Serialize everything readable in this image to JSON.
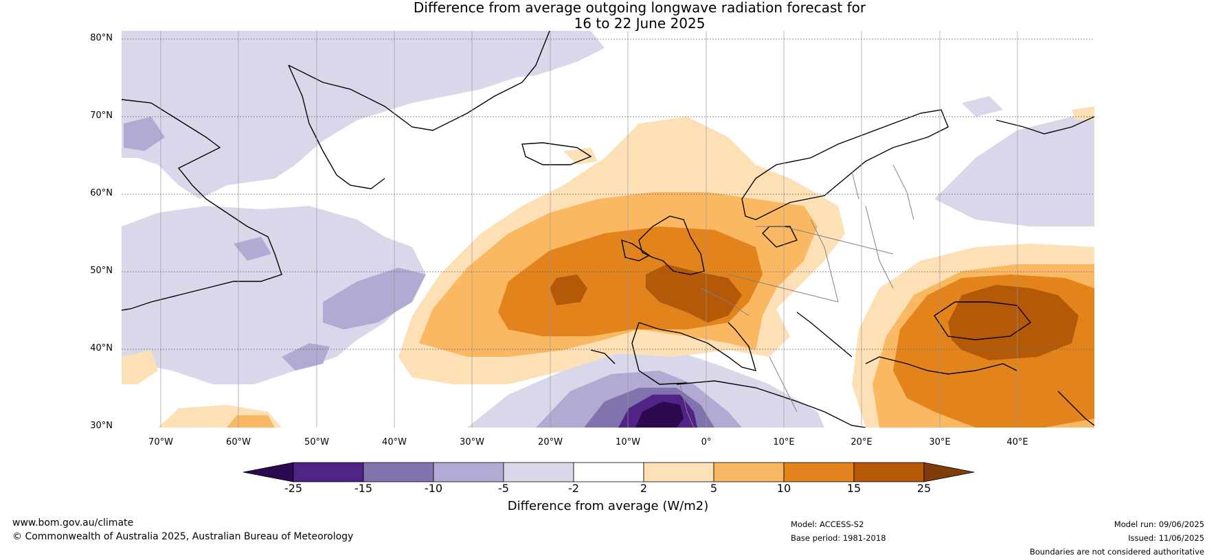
{
  "title": {
    "line1": "Difference from average outgoing longwave radiation forecast for",
    "line2": "16 to 22 June 2025"
  },
  "map": {
    "lat_labels": [
      "80°N",
      "70°N",
      "60°N",
      "50°N",
      "40°N",
      "30°N"
    ],
    "lon_labels": [
      "70°W",
      "60°W",
      "50°W",
      "40°W",
      "30°W",
      "20°W",
      "10°W",
      "0°",
      "10°E",
      "20°E",
      "30°E",
      "40°E"
    ]
  },
  "colorbar": {
    "ticks": [
      "-25",
      "-15",
      "-10",
      "-5",
      "-2",
      "2",
      "5",
      "10",
      "15",
      "25"
    ],
    "colors": [
      "#2d0a4f",
      "#522387",
      "#8073ae",
      "#b2aad2",
      "#d9d8ea",
      "#ffffff",
      "#fde0b6",
      "#fbb863",
      "#e2831b",
      "#b35907",
      "#7f3b08"
    ],
    "label": "Difference from average (W/m2)"
  },
  "footer": {
    "website": "www.bom.gov.au/climate",
    "copyright": "© Commonwealth of Australia 2025, Australian Bureau of Meteorology",
    "model": "Model: ACCESS-S2",
    "base_period": "Base period: 1981-2018",
    "model_run": "Model run: 09/06/2025",
    "issued": "Issued: 11/06/2025",
    "disclaimer": "Boundaries are not considered authoritative"
  }
}
